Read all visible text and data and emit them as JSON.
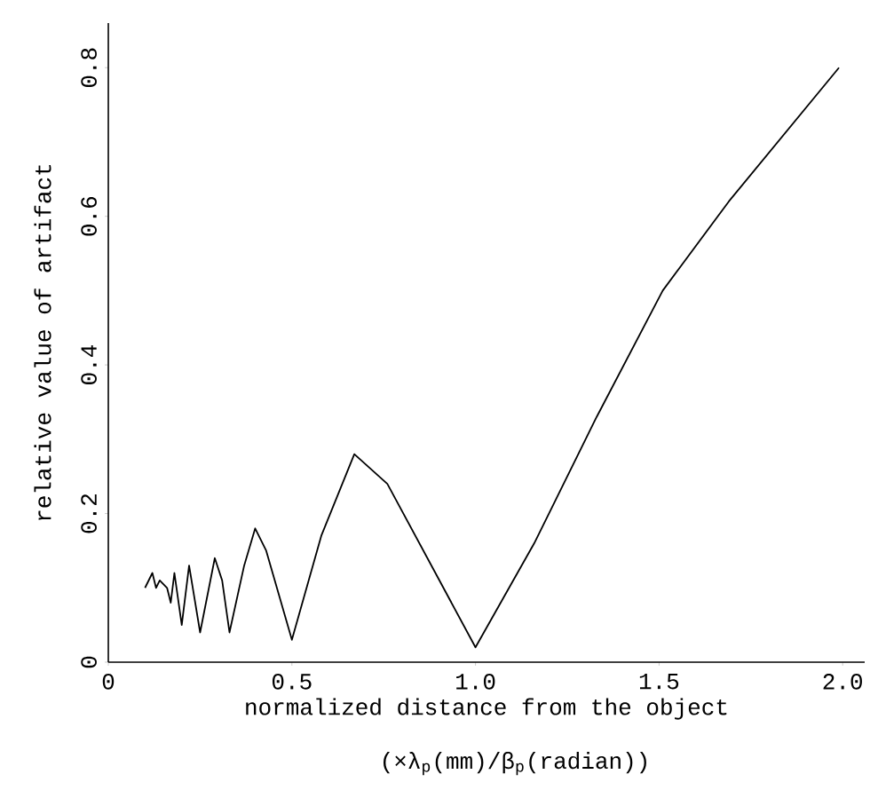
{
  "chart_data": {
    "type": "line",
    "xlabel": "normalized distance from the object",
    "ylabel": "relative value of artifact",
    "annotations": [
      "(×λ$_{p}$(mm)/β$_{p}$(radian))"
    ],
    "x": [
      0.1,
      0.12,
      0.13,
      0.14,
      0.16,
      0.17,
      0.18,
      0.2,
      0.22,
      0.25,
      0.29,
      0.31,
      0.33,
      0.37,
      0.4,
      0.43,
      0.5,
      0.58,
      0.67,
      0.76,
      1.0,
      1.16,
      1.33,
      1.51,
      1.69,
      1.99
    ],
    "values": [
      0.1,
      0.12,
      0.1,
      0.11,
      0.1,
      0.08,
      0.12,
      0.05,
      0.13,
      0.04,
      0.14,
      0.11,
      0.04,
      0.13,
      0.18,
      0.15,
      0.03,
      0.17,
      0.28,
      0.24,
      0.02,
      0.16,
      0.33,
      0.5,
      0.62,
      0.8
    ],
    "color": "#000000",
    "marker": "none",
    "line_style": "solid",
    "xlim": [
      0,
      2.06
    ],
    "ylim": [
      0,
      0.86
    ],
    "xticks": [
      0,
      0.5,
      {
        "value": 1,
        "label": "1.0"
      },
      1.5,
      {
        "value": 2,
        "label": "2.0"
      }
    ],
    "yticks": [
      0,
      0.2,
      0.4,
      0.6,
      0.8
    ]
  }
}
